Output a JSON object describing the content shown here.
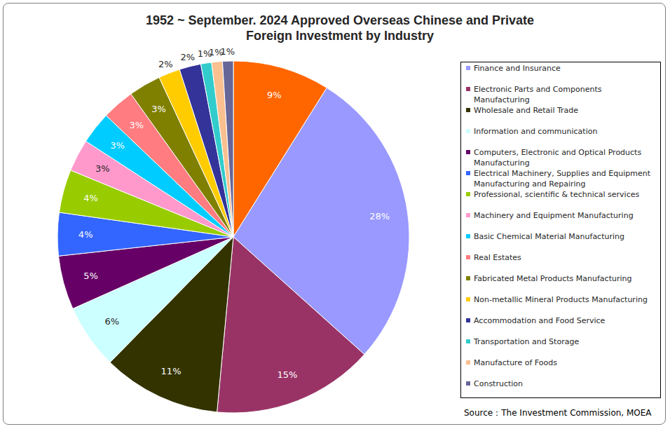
{
  "chart_data": {
    "type": "pie",
    "title": "1952 ~ September. 2024 Approved Overseas Chinese and Private Foreign Investment by Industry",
    "source": "Source：The Investment Commission, MOEA",
    "categories": [
      null,
      "Finance and Insurance",
      "Electronic Parts and Components Manufacturing",
      "Wholesale and Retail Trade",
      "Information and communication",
      "Computers, Electronic and Optical Products Manufacturing",
      "Electrical Machinery, Supplies and Equipment Manufacturing and Repairing",
      "Professional, scientific & technical services",
      "Machinery and Equipment Manufacturing",
      "Basic Chemical Material Manufacturing",
      "Real Estates",
      "Fabricated Metal Products Manufacturing",
      "Non-metallic Mineral Products Manufacturing",
      "Accommodation and Food Service",
      "Transportation and Storage",
      "Manufacture of Foods",
      "Construction"
    ],
    "values": [
      9,
      28,
      15,
      11,
      6,
      5,
      4,
      4,
      3,
      3,
      3,
      3,
      2,
      2,
      1,
      1,
      1
    ],
    "value_labels": [
      "9%",
      "28%",
      "15%",
      "11%",
      "6%",
      "5%",
      "4%",
      "4%",
      "3%",
      "3%",
      "3%",
      "3%",
      "2%",
      "2%",
      "1%",
      "1%",
      "1%"
    ],
    "colors": [
      "#ff6600",
      "#9999ff",
      "#993366",
      "#333300",
      "#ccffff",
      "#660066",
      "#3366ff",
      "#99cc00",
      "#ff99cc",
      "#00ccff",
      "#ff7c80",
      "#808000",
      "#ffcc00",
      "#333399",
      "#33cccc",
      "#fac090",
      "#666699"
    ],
    "data_labels": true,
    "legend": "right"
  }
}
